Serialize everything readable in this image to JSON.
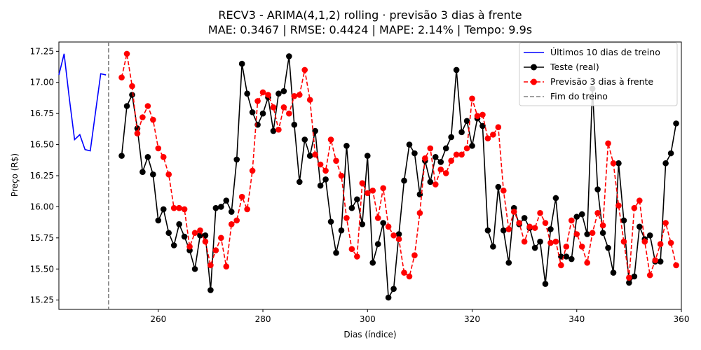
{
  "chart_data": {
    "type": "line",
    "title": "RECV3 - ARIMA(4,1,2) rolling · previsão 3 dias à frente",
    "subtitle": "MAE: 0.3467 | RMSE: 0.4424 | MAPE: 2.14% | Tempo: 9.9s",
    "xlabel": "Dias (índice)",
    "ylabel": "Preço (R$)",
    "xlim": [
      241,
      360
    ],
    "ylim": [
      15.175,
      17.325
    ],
    "x_ticks": [
      260,
      280,
      300,
      320,
      340,
      360
    ],
    "y_ticks": [
      15.25,
      15.5,
      15.75,
      16.0,
      16.25,
      16.5,
      16.75,
      17.0,
      17.25
    ],
    "grid": false,
    "legend_position": "top-right",
    "vline": {
      "x": 250.5,
      "name": "Fim do treino",
      "color": "#808080"
    },
    "series": [
      {
        "name": "Últimos 10 dias de treino",
        "color": "#0000ff",
        "style": "line",
        "x": [
          241,
          242,
          243,
          244,
          245,
          246,
          247,
          248,
          249,
          250
        ],
        "values": [
          17.06,
          17.23,
          16.87,
          16.54,
          16.58,
          16.46,
          16.45,
          16.76,
          17.07,
          17.06
        ]
      },
      {
        "name": "Teste (real)",
        "color": "#000000",
        "style": "solid-markers",
        "x_start": 253,
        "values": [
          16.41,
          16.81,
          16.9,
          16.63,
          16.28,
          16.4,
          16.26,
          15.89,
          15.98,
          15.79,
          15.69,
          15.86,
          15.76,
          15.65,
          15.5,
          15.77,
          15.77,
          15.33,
          15.99,
          16.0,
          16.05,
          15.96,
          16.38,
          17.15,
          16.91,
          16.76,
          16.66,
          16.75,
          16.88,
          16.61,
          16.91,
          16.93,
          17.21,
          16.66,
          16.2,
          16.54,
          16.41,
          16.61,
          16.17,
          16.22,
          15.88,
          15.63,
          15.81,
          16.49,
          15.99,
          16.06,
          15.86,
          16.41,
          15.55,
          15.7,
          15.87,
          15.27,
          15.34,
          15.78,
          16.21,
          16.5,
          16.43,
          16.1,
          16.37,
          16.2,
          16.4,
          16.36,
          16.47,
          16.56,
          17.1,
          16.6,
          16.69,
          16.49,
          16.71,
          16.65,
          15.81,
          15.68,
          16.16,
          15.81,
          15.55,
          15.99,
          15.86,
          15.91,
          15.83,
          15.67,
          15.72,
          15.38,
          15.82,
          16.07,
          15.6,
          15.6,
          15.58,
          15.92,
          15.94,
          15.78,
          16.95,
          16.14,
          15.79,
          15.67,
          15.47,
          16.35,
          15.89,
          15.39,
          15.44,
          15.84,
          15.74,
          15.77,
          15.56,
          15.56,
          16.35,
          16.43,
          16.67
        ]
      },
      {
        "name": "Previsão 3 dias à frente",
        "color": "#ff0000",
        "style": "dashed-markers",
        "x_start": 253,
        "values": [
          17.04,
          17.23,
          16.97,
          16.59,
          16.72,
          16.81,
          16.7,
          16.47,
          16.4,
          16.26,
          15.99,
          15.99,
          15.98,
          15.68,
          15.79,
          15.81,
          15.72,
          15.53,
          15.65,
          15.75,
          15.52,
          15.86,
          15.89,
          16.08,
          15.98,
          16.29,
          16.85,
          16.92,
          16.9,
          16.8,
          16.62,
          16.8,
          16.75,
          16.89,
          16.9,
          17.1,
          16.86,
          16.42,
          16.34,
          16.29,
          16.54,
          16.37,
          16.25,
          15.91,
          15.66,
          15.6,
          16.19,
          16.11,
          16.13,
          15.91,
          16.15,
          15.84,
          15.77,
          15.74,
          15.47,
          15.44,
          15.61,
          15.95,
          16.39,
          16.47,
          16.18,
          16.3,
          16.27,
          16.37,
          16.42,
          16.42,
          16.47,
          16.87,
          16.73,
          16.74,
          16.55,
          16.58,
          16.64,
          16.13,
          15.82,
          15.96,
          15.87,
          15.72,
          15.84,
          15.83,
          15.95,
          15.87,
          15.71,
          15.72,
          15.53,
          15.68,
          15.89,
          15.78,
          15.68,
          15.55,
          15.79,
          15.95,
          15.85,
          16.51,
          16.35,
          16.01,
          15.72,
          15.43,
          15.99,
          16.05,
          15.72,
          15.45,
          15.57,
          15.7,
          15.87,
          15.71,
          15.53
        ]
      }
    ]
  }
}
